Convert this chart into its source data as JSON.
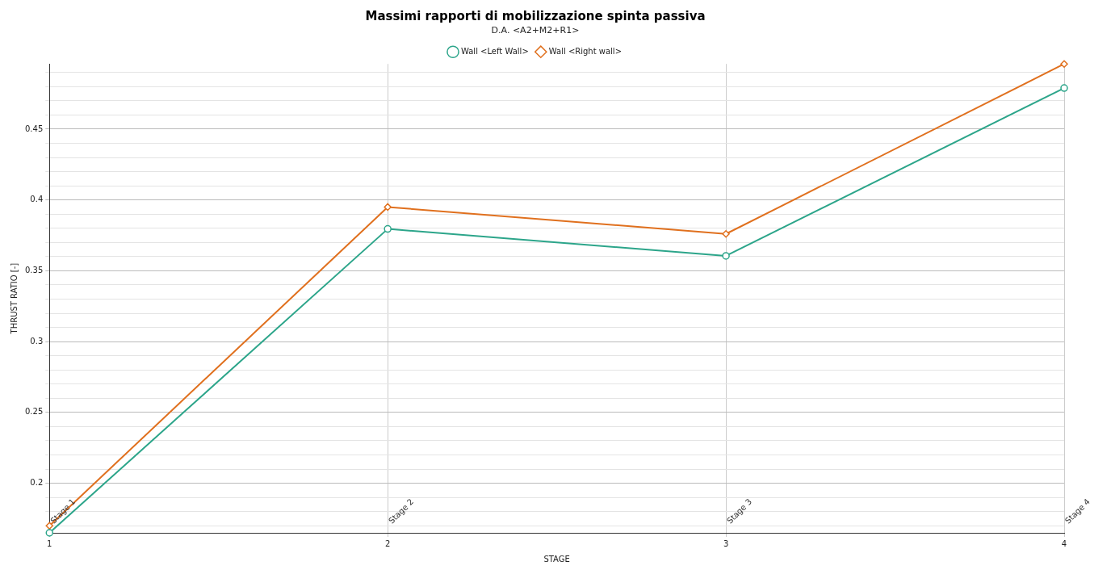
{
  "chart_data": {
    "type": "line",
    "title": "Massimi rapporti di mobilizzazione spinta passiva",
    "subtitle": "D.A. <A2+M2+R1>",
    "xlabel": "STAGE",
    "ylabel": "THRUST RATIO [-]",
    "x": [
      1,
      2,
      3,
      4
    ],
    "series": [
      {
        "name": "Wall <Left Wall>",
        "color": "#2ca58a",
        "marker": "circle",
        "values": [
          0.165,
          0.3795,
          0.3605,
          0.479
        ]
      },
      {
        "name": "Wall <Right wall>",
        "color": "#e0701e",
        "marker": "diamond",
        "values": [
          0.17,
          0.395,
          0.376,
          0.496
        ]
      }
    ],
    "xlim": [
      1,
      4
    ],
    "xticks": [
      1,
      2,
      3,
      4
    ],
    "ylim": [
      0.165,
      0.496
    ],
    "yticks": [
      {
        "value": 0.17,
        "label": null
      },
      {
        "value": 0.18,
        "label": null
      },
      {
        "value": 0.19,
        "label": null
      },
      0.2,
      {
        "value": 0.21,
        "label": null
      },
      {
        "value": 0.22,
        "label": null
      },
      {
        "value": 0.23,
        "label": null
      },
      {
        "value": 0.24,
        "label": null
      },
      0.25,
      {
        "value": 0.26,
        "label": null
      },
      {
        "value": 0.27,
        "label": null
      },
      {
        "value": 0.28,
        "label": null
      },
      {
        "value": 0.29,
        "label": null
      },
      0.3,
      {
        "value": 0.31,
        "label": null
      },
      {
        "value": 0.32,
        "label": null
      },
      {
        "value": 0.33,
        "label": null
      },
      {
        "value": 0.34,
        "label": null
      },
      0.35,
      {
        "value": 0.36,
        "label": null
      },
      {
        "value": 0.37,
        "label": null
      },
      {
        "value": 0.38,
        "label": null
      },
      {
        "value": 0.39,
        "label": null
      },
      0.4,
      {
        "value": 0.41,
        "label": null
      },
      {
        "value": 0.42,
        "label": null
      },
      {
        "value": 0.43,
        "label": null
      },
      {
        "value": 0.44,
        "label": null
      },
      0.45,
      {
        "value": 0.46,
        "label": null
      },
      {
        "value": 0.47,
        "label": null
      },
      {
        "value": 0.48,
        "label": null
      },
      {
        "value": 0.49,
        "label": null
      }
    ],
    "annotations": [
      "Stage 1",
      "Stage 2",
      "Stage 3",
      "Stage 4"
    ],
    "grid": true,
    "legend": "top",
    "line_style": "solid"
  }
}
